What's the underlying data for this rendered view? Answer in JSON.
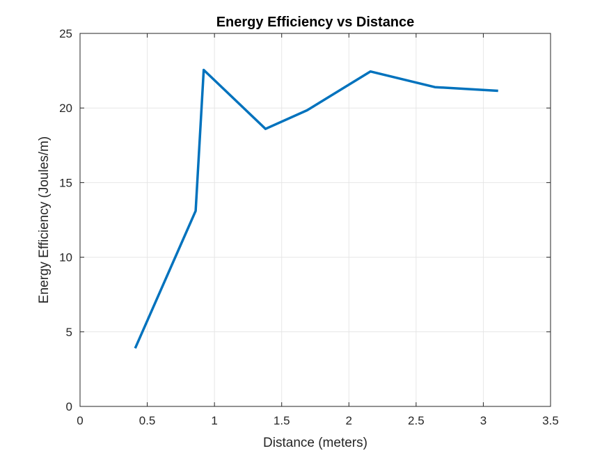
{
  "chart_data": {
    "type": "line",
    "title": "Energy Efficiency vs Distance",
    "xlabel": "Distance (meters)",
    "ylabel": "Energy Efficiency (Joules/m)",
    "xlim": [
      0,
      3.5
    ],
    "ylim": [
      0,
      25
    ],
    "xticks": [
      0,
      0.5,
      1,
      1.5,
      2,
      2.5,
      3,
      3.5
    ],
    "xtick_labels": [
      "0",
      "0.5",
      "1",
      "1.5",
      "2",
      "2.5",
      "3",
      "3.5"
    ],
    "yticks": [
      0,
      5,
      10,
      15,
      20,
      25
    ],
    "ytick_labels": [
      "0",
      "5",
      "10",
      "15",
      "20",
      "25"
    ],
    "grid": true,
    "series": [
      {
        "color": "#0072BD",
        "x": [
          0.41,
          0.86,
          0.92,
          1.38,
          1.69,
          2.16,
          2.64,
          3.11
        ],
        "y": [
          3.9,
          13.1,
          22.55,
          18.6,
          19.85,
          22.45,
          21.4,
          21.15
        ]
      }
    ]
  }
}
